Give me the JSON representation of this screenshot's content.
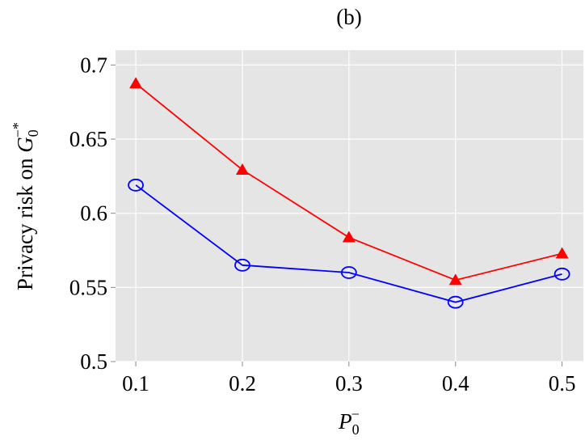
{
  "chart_data": {
    "type": "line",
    "title": "(b)",
    "x_label": {
      "symbol": "P",
      "subscript": "0",
      "superscript": "−"
    },
    "y_label": {
      "text": "Privacy risk on ",
      "symbol": "G",
      "subscript": "0",
      "superscript": "−*"
    },
    "x": [
      0.1,
      0.2,
      0.3,
      0.4,
      0.5
    ],
    "series": [
      {
        "color": "#ff0000",
        "marker": "triangle",
        "values": [
          0.6875,
          0.6293,
          0.5837,
          0.5549,
          0.5728
        ]
      },
      {
        "color": "#0000ff",
        "marker": "circle",
        "values": [
          0.619,
          0.565,
          0.56,
          0.54,
          0.559
        ]
      }
    ],
    "xlim": [
      0.081,
      0.52
    ],
    "ylim": [
      0.5,
      0.71
    ],
    "xticks": [
      0.1,
      0.2,
      0.3,
      0.4,
      0.5
    ],
    "yticks": [
      0.5,
      0.55,
      0.6,
      0.65,
      0.7
    ],
    "grid": true,
    "background": "#e5e5e5"
  }
}
